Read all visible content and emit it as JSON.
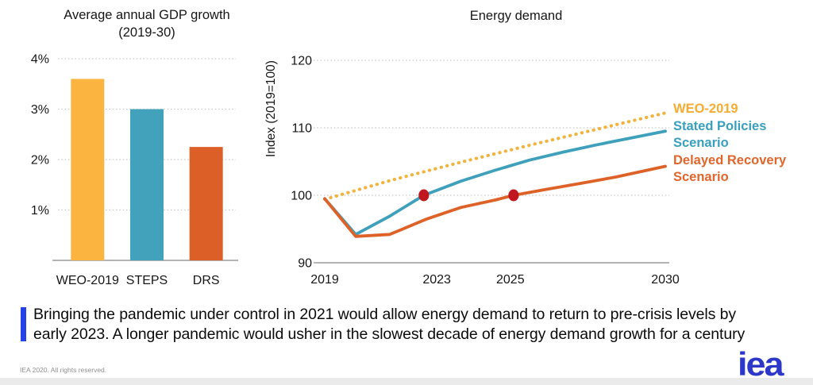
{
  "page": {
    "footer_note": "IEA 2020. All rights reserved.",
    "logo_text": "iea",
    "caption": {
      "line1": "Bringing the pandemic under control in 2021 would allow energy demand to return to pre-crisis levels by",
      "line2": "early 2023. A longer pandemic would usher in the slowest decade of energy demand growth for a century",
      "accent_bar_color": "#2541E8"
    },
    "colors": {
      "logo_blue": "#2E38C8",
      "footer_gray": "#8F8F8F",
      "bottom_strip": "#EBEBEB",
      "grid": "#C6C6C6",
      "axis": "#9B9B9B",
      "text": "#161616"
    }
  },
  "chart_data": [
    {
      "type": "bar",
      "title": "Average annual GDP growth",
      "subtitle": "(2019-30)",
      "categories": [
        "WEO-2019",
        "STEPS",
        "DRS"
      ],
      "values": [
        3.6,
        3.0,
        2.25
      ],
      "unit": "%",
      "bar_colors": [
        "#FBB440",
        "#42A2BB",
        "#DD5F28"
      ],
      "ylim": [
        0,
        4
      ],
      "yticks": [
        1,
        2,
        3,
        4
      ],
      "ytick_labels": [
        "1%",
        "2%",
        "3%",
        "4%"
      ],
      "grid": "dotted-horizontal",
      "xlabel": "",
      "ylabel": ""
    },
    {
      "type": "line",
      "title": "Energy demand",
      "ylabel": "Index (2019=100)",
      "xlim": [
        2019,
        2030
      ],
      "ylim": [
        90,
        120
      ],
      "yticks": [
        90,
        100,
        110,
        120
      ],
      "xticks": [
        {
          "label": "2019",
          "pos": 0.0
        },
        {
          "label": "2023",
          "pos": 0.329
        },
        {
          "label": "2025",
          "pos": 0.545
        },
        {
          "label": "2030",
          "pos": 1.0
        }
      ],
      "grid": "dotted-horizontal",
      "legend_position": "right",
      "series": [
        {
          "name": "WEO-2019",
          "style": "dotted",
          "color": "#F1B33C",
          "legend_color": "#F5AC30",
          "points": [
            [
              2019,
              99.4
            ],
            [
              2021.2,
              102.3
            ],
            [
              2023.4,
              104.9
            ],
            [
              2025.6,
              107.4
            ],
            [
              2027.8,
              109.8
            ],
            [
              2030,
              112.2
            ]
          ]
        },
        {
          "name": "Stated Policies Scenario",
          "style": "solid",
          "color": "#3FA0BC",
          "legend_color": "#389FBE",
          "points": [
            [
              2019,
              99.5
            ],
            [
              2020,
              94.2
            ],
            [
              2021.1,
              96.9
            ],
            [
              2022.2,
              100
            ],
            [
              2023.4,
              102.1
            ],
            [
              2024.5,
              103.7
            ],
            [
              2025.6,
              105.2
            ],
            [
              2026.7,
              106.4
            ],
            [
              2027.8,
              107.5
            ],
            [
              2028.9,
              108.5
            ],
            [
              2030,
              109.5
            ]
          ]
        },
        {
          "name": "Delayed Recovery Scenario",
          "style": "solid",
          "color": "#DE6228",
          "legend_color": "#E0662C",
          "points": [
            [
              2019,
              99.5
            ],
            [
              2020,
              93.9
            ],
            [
              2021.1,
              94.2
            ],
            [
              2022.3,
              96.5
            ],
            [
              2023.4,
              98.2
            ],
            [
              2024.5,
              99.3
            ],
            [
              2025.1,
              100
            ],
            [
              2026.2,
              100.9
            ],
            [
              2027.3,
              101.8
            ],
            [
              2028.4,
              102.7
            ],
            [
              2030,
              104.3
            ]
          ]
        }
      ],
      "markers": [
        {
          "x": 2022.2,
          "y": 100,
          "color": "#C0161F"
        },
        {
          "x": 2025.1,
          "y": 100,
          "color": "#C0161F"
        }
      ]
    }
  ]
}
